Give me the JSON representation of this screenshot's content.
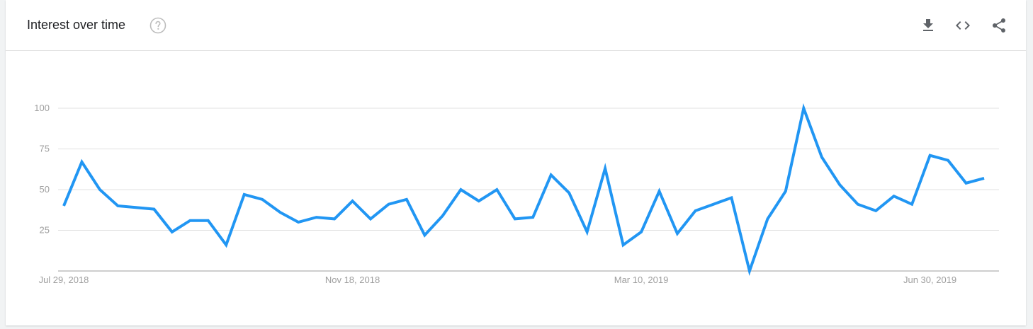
{
  "header": {
    "title": "Interest over time",
    "help_icon": "help-circle-icon",
    "actions": [
      "download-icon",
      "embed-code-icon",
      "share-icon"
    ]
  },
  "colors": {
    "line": "#2196f3",
    "grid": "#e0e0e0",
    "axis": "#bdbdbd",
    "tick_text": "#9e9e9e",
    "icon": "#5f6368",
    "help": "#bdbdbd"
  },
  "chart_data": {
    "type": "line",
    "title": "Interest over time",
    "xlabel": "",
    "ylabel": "",
    "ylim": [
      0,
      100
    ],
    "yticks": [
      25,
      50,
      75,
      100
    ],
    "x_tick_labels": [
      {
        "index": 0,
        "label": "Jul 29, 2018"
      },
      {
        "index": 16,
        "label": "Nov 18, 2018"
      },
      {
        "index": 32,
        "label": "Mar 10, 2019"
      },
      {
        "index": 48,
        "label": "Jun 30, 2019"
      }
    ],
    "grid": true,
    "series": [
      {
        "values": [
          40,
          67,
          50,
          40,
          39,
          38,
          24,
          31,
          31,
          16,
          47,
          44,
          36,
          30,
          33,
          32,
          43,
          32,
          41,
          44,
          22,
          34,
          50,
          43,
          50,
          32,
          33,
          59,
          48,
          24,
          63,
          16,
          24,
          49,
          23,
          37,
          41,
          45,
          0,
          32,
          49,
          100,
          70,
          53,
          41,
          37,
          46,
          41,
          71,
          68,
          54,
          57
        ]
      }
    ]
  }
}
